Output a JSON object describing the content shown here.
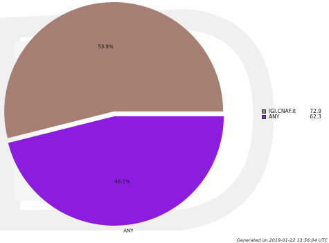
{
  "chart_data": {
    "type": "pie",
    "title": "",
    "slices": [
      {
        "label": "IGI.CNAF.it",
        "value": 72.9,
        "percent": "53.9%",
        "color": "#a57f72"
      },
      {
        "label": "ANY",
        "value": 62.3,
        "percent": "46.1%",
        "color": "#8c1cde"
      }
    ],
    "legend_position": "right"
  },
  "legend": {
    "items": [
      {
        "name": "IGI.CNAF.it",
        "value": "72.9",
        "color": "#a57f72"
      },
      {
        "name": "ANY",
        "value": "62.3",
        "color": "#8c1cde"
      }
    ]
  },
  "footer": {
    "generated": "Generated on 2019-01-22 13:56:04 UTC"
  }
}
